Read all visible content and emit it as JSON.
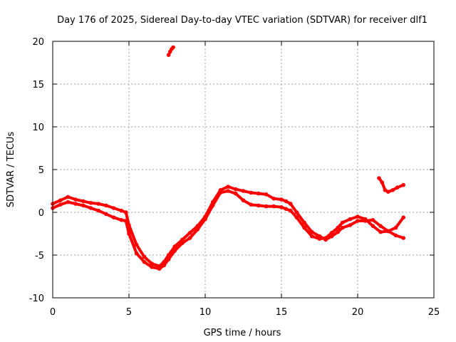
{
  "chart_data": {
    "type": "scatter",
    "title": "Day 176 of 2025, Sidereal Day-to-day VTEC variation (SDTVAR) for receiver dlf1",
    "xlabel": "GPS time / hours",
    "ylabel": "SDTVAR / TECUs",
    "xlim": [
      0,
      25
    ],
    "ylim": [
      -10,
      20
    ],
    "xticks": [
      0,
      5,
      10,
      15,
      20,
      25
    ],
    "yticks": [
      -10,
      -5,
      0,
      5,
      10,
      15,
      20
    ],
    "xtick_labels": [
      "0",
      "5",
      "10",
      "15",
      "20",
      "25"
    ],
    "ytick_labels": [
      "-10",
      "-5",
      "0",
      "5",
      "10",
      "15",
      "20"
    ],
    "grid": true,
    "series_color": "#ff0000",
    "series": [
      {
        "name": "arc-main-upper",
        "x": [
          0.0,
          0.5,
          1.0,
          1.5,
          2.0,
          2.5,
          3.0,
          3.5,
          4.0,
          4.5,
          4.8,
          5.0,
          5.5,
          6.0,
          6.5,
          7.0,
          7.3,
          7.6,
          8.0,
          8.5,
          9.0,
          9.5,
          10.0,
          10.5,
          11.0,
          11.5,
          12.0,
          12.5,
          13.0,
          13.5,
          14.0,
          14.5,
          15.0,
          15.3,
          15.6
        ],
        "y": [
          1.0,
          1.4,
          1.8,
          1.5,
          1.3,
          1.1,
          1.0,
          0.8,
          0.5,
          0.2,
          0.0,
          -1.5,
          -3.8,
          -5.2,
          -6.0,
          -6.3,
          -5.8,
          -5.0,
          -4.0,
          -3.2,
          -2.4,
          -1.6,
          -0.5,
          1.2,
          2.6,
          3.0,
          2.7,
          2.5,
          2.3,
          2.2,
          2.1,
          1.6,
          1.5,
          1.3,
          1.0
        ]
      },
      {
        "name": "arc-main-lower",
        "x": [
          0.0,
          0.5,
          1.0,
          1.5,
          2.0,
          2.5,
          3.0,
          3.5,
          4.0,
          4.5,
          4.8,
          5.0,
          5.5,
          6.0,
          6.5,
          7.0,
          7.3,
          7.6,
          8.0,
          8.5,
          9.0,
          9.5,
          10.0,
          10.5,
          11.0,
          11.5,
          12.0,
          12.5,
          13.0,
          13.5,
          14.0,
          14.5,
          15.0,
          15.3,
          15.6
        ],
        "y": [
          0.5,
          0.9,
          1.2,
          1.0,
          0.8,
          0.5,
          0.2,
          -0.2,
          -0.6,
          -0.9,
          -1.0,
          -2.5,
          -4.8,
          -5.8,
          -6.4,
          -6.6,
          -6.2,
          -5.5,
          -4.5,
          -3.6,
          -3.0,
          -2.0,
          -0.8,
          0.8,
          2.3,
          2.5,
          2.2,
          1.4,
          0.9,
          0.8,
          0.7,
          0.7,
          0.6,
          0.4,
          0.2
        ]
      },
      {
        "name": "arc-evening-a",
        "x": [
          15.6,
          16.0,
          16.5,
          17.0,
          17.5,
          17.9,
          18.3,
          18.7,
          19.0,
          19.5,
          20.0,
          20.5,
          21.0,
          21.5,
          22.0,
          22.5,
          23.0
        ],
        "y": [
          1.0,
          0.0,
          -1.2,
          -2.3,
          -2.8,
          -3.2,
          -2.8,
          -2.3,
          -1.8,
          -1.5,
          -1.0,
          -1.0,
          -0.9,
          -1.6,
          -2.2,
          -2.7,
          -3.0
        ]
      },
      {
        "name": "arc-evening-b",
        "x": [
          15.6,
          16.0,
          16.5,
          17.0,
          17.5,
          17.9,
          18.3,
          18.7,
          19.0,
          19.5,
          20.0,
          20.5,
          21.0,
          21.5,
          22.0,
          22.5,
          23.0
        ],
        "y": [
          0.2,
          -0.6,
          -1.8,
          -2.8,
          -3.1,
          -3.0,
          -2.4,
          -1.8,
          -1.2,
          -0.8,
          -0.5,
          -0.8,
          -1.6,
          -2.3,
          -2.2,
          -1.8,
          -0.6
        ]
      },
      {
        "name": "arc-late-segment",
        "x": [
          21.4,
          21.6,
          21.8,
          22.0,
          22.3,
          22.6,
          23.0
        ],
        "y": [
          4.0,
          3.5,
          2.6,
          2.4,
          2.6,
          2.9,
          3.2
        ]
      },
      {
        "name": "arc-outlier-segment",
        "x": [
          7.6,
          7.7,
          7.8,
          7.9
        ],
        "y": [
          18.4,
          18.8,
          19.1,
          19.3
        ]
      }
    ]
  }
}
